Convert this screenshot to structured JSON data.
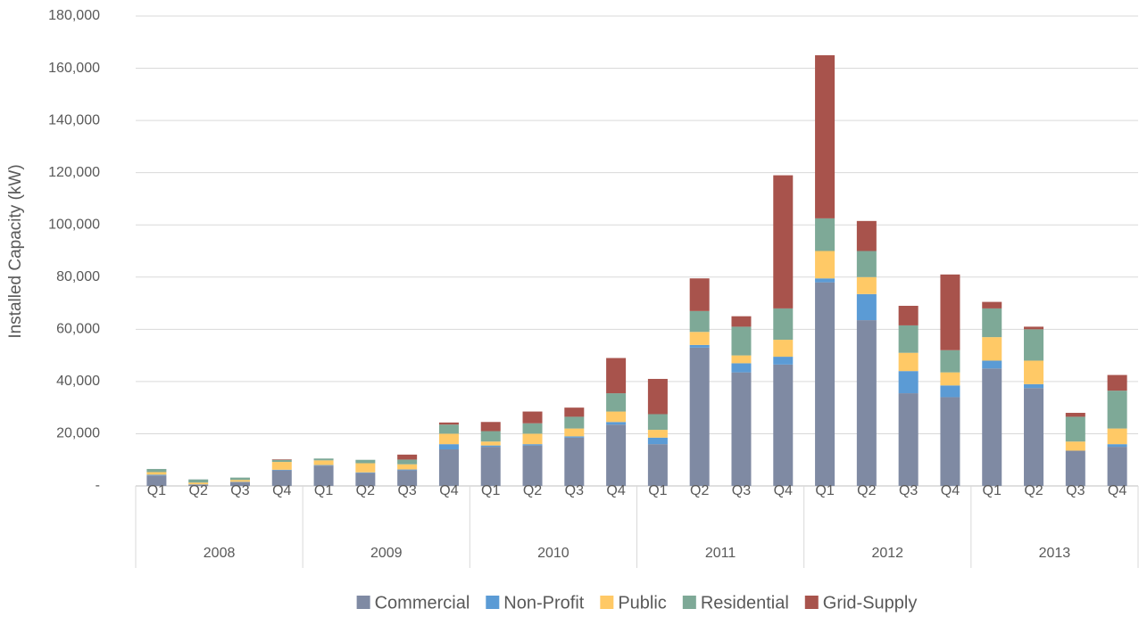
{
  "chart_data": {
    "type": "stacked_bar",
    "y_axis_label": "Installed Capacity (kW)",
    "categories": [
      "Q1",
      "Q2",
      "Q3",
      "Q4",
      "Q1",
      "Q2",
      "Q3",
      "Q4",
      "Q1",
      "Q2",
      "Q3",
      "Q4",
      "Q1",
      "Q2",
      "Q3",
      "Q4",
      "Q1",
      "Q2",
      "Q3",
      "Q4",
      "Q1",
      "Q2",
      "Q3",
      "Q4"
    ],
    "groups": [
      "2008",
      "2009",
      "2010",
      "2011",
      "2012",
      "2013"
    ],
    "series": [
      {
        "name": "Commercial",
        "color": "#7f8aa3",
        "values": [
          4000,
          500,
          1500,
          6000,
          7800,
          5000,
          6000,
          14000,
          15000,
          15500,
          18500,
          23500,
          16000,
          53000,
          43500,
          46500,
          78000,
          63500,
          35500,
          34000,
          45000,
          37500,
          13500,
          15000
        ]
      },
      {
        "name": "Non-Profit",
        "color": "#5b9bd5",
        "values": [
          300,
          100,
          100,
          200,
          200,
          200,
          300,
          2000,
          500,
          500,
          500,
          1000,
          2500,
          1000,
          3500,
          3000,
          1500,
          10000,
          8500,
          4500,
          3000,
          1500,
          0,
          1000
        ]
      },
      {
        "name": "Public",
        "color": "#ffc966",
        "values": [
          1000,
          700,
          700,
          3000,
          1800,
          3500,
          2000,
          4000,
          1500,
          4000,
          3000,
          4000,
          3000,
          5000,
          3000,
          6500,
          10500,
          6500,
          7000,
          5000,
          9000,
          9000,
          3500,
          6000
        ]
      },
      {
        "name": "Residential",
        "color": "#7ea997",
        "values": [
          1200,
          1200,
          900,
          800,
          700,
          1300,
          1800,
          3500,
          4000,
          4000,
          4500,
          7000,
          6000,
          8000,
          11000,
          12000,
          12500,
          10000,
          10500,
          8500,
          11000,
          12000,
          9500,
          14500
        ]
      },
      {
        "name": "Grid-Supply",
        "color": "#a8534c",
        "values": [
          0,
          0,
          0,
          200,
          0,
          0,
          1900,
          800,
          3500,
          4500,
          3500,
          13500,
          13500,
          12500,
          4000,
          51000,
          62500,
          11500,
          7500,
          29000,
          2500,
          1000,
          1500,
          6000
        ]
      }
    ],
    "ylim": [
      0,
      180000
    ],
    "yticks": [
      {
        "value": 0,
        "label": "-"
      },
      {
        "value": 20000,
        "label": "20,000"
      },
      {
        "value": 40000,
        "label": "40,000"
      },
      {
        "value": 60000,
        "label": "60,000"
      },
      {
        "value": 80000,
        "label": "80,000"
      },
      {
        "value": 100000,
        "label": "100,000"
      },
      {
        "value": 120000,
        "label": "120,000"
      },
      {
        "value": 140000,
        "label": "140,000"
      },
      {
        "value": 160000,
        "label": "160,000"
      },
      {
        "value": 180000,
        "label": "180,000"
      }
    ],
    "grid": true,
    "legend": "bottom"
  }
}
